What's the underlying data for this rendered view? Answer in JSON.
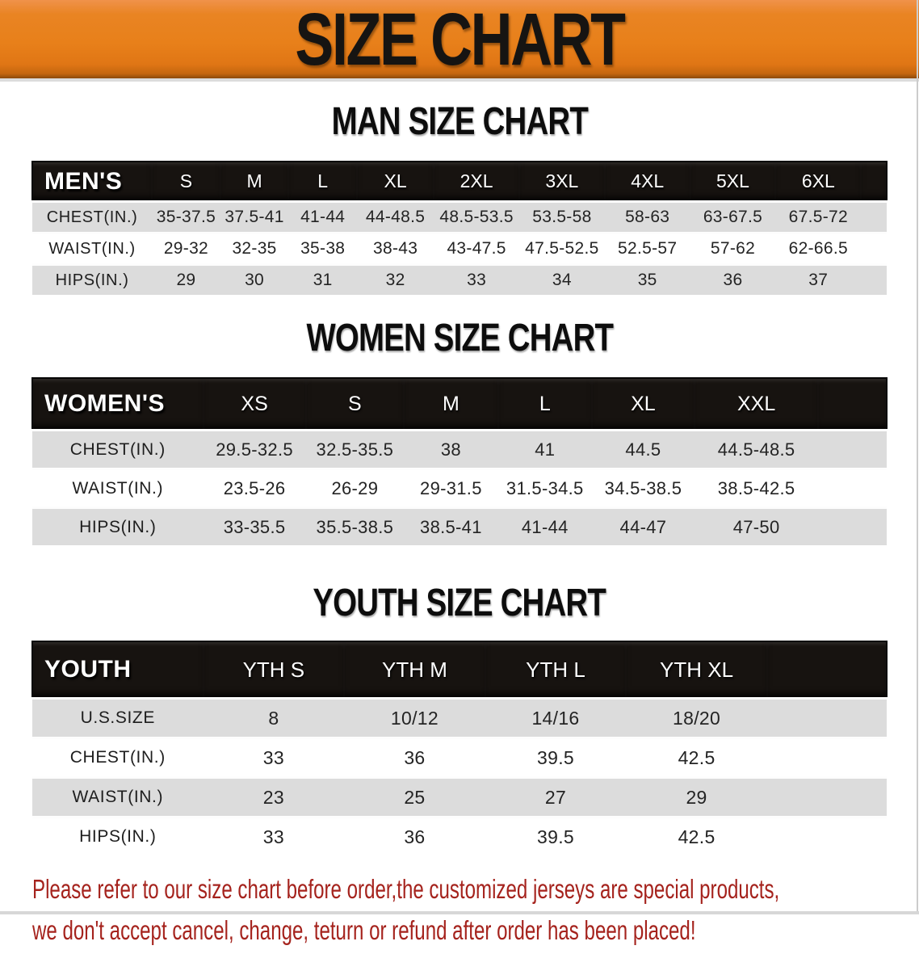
{
  "banner": {
    "title": "SIZE CHART",
    "bg_color": "#E8801A"
  },
  "sections": [
    {
      "title": "MAN SIZE CHART",
      "corner_label": "MEN'S",
      "sizes": [
        "S",
        "M",
        "L",
        "XL",
        "2XL",
        "3XL",
        "4XL",
        "5XL",
        "6XL"
      ],
      "rows": [
        {
          "label": "CHEST(IN.)",
          "values": [
            "35-37.5",
            "37.5-41",
            "41-44",
            "44-48.5",
            "48.5-53.5",
            "53.5-58",
            "58-63",
            "63-67.5",
            "67.5-72"
          ]
        },
        {
          "label": "WAIST(IN.)",
          "values": [
            "29-32",
            "32-35",
            "35-38",
            "38-43",
            "43-47.5",
            "47.5-52.5",
            "52.5-57",
            "57-62",
            "62-66.5"
          ]
        },
        {
          "label": "HIPS(IN.)",
          "values": [
            "29",
            "30",
            "31",
            "32",
            "33",
            "34",
            "35",
            "36",
            "37"
          ]
        }
      ]
    },
    {
      "title": "WOMEN SIZE CHART",
      "corner_label": "WOMEN'S",
      "sizes": [
        "XS",
        "S",
        "M",
        "L",
        "XL",
        "XXL"
      ],
      "rows": [
        {
          "label": "CHEST(IN.)",
          "values": [
            "29.5-32.5",
            "32.5-35.5",
            "38",
            "41",
            "44.5",
            "44.5-48.5"
          ]
        },
        {
          "label": "WAIST(IN.)",
          "values": [
            "23.5-26",
            "26-29",
            "29-31.5",
            "31.5-34.5",
            "34.5-38.5",
            "38.5-42.5"
          ]
        },
        {
          "label": "HIPS(IN.)",
          "values": [
            "33-35.5",
            "35.5-38.5",
            "38.5-41",
            "41-44",
            "44-47",
            "47-50"
          ]
        }
      ]
    },
    {
      "title": "YOUTH SIZE CHART",
      "corner_label": "YOUTH",
      "sizes": [
        "YTH S",
        "YTH M",
        "YTH L",
        "YTH XL"
      ],
      "rows": [
        {
          "label": "U.S.SIZE",
          "values": [
            "8",
            "10/12",
            "14/16",
            "18/20"
          ]
        },
        {
          "label": "CHEST(IN.)",
          "values": [
            "33",
            "36",
            "39.5",
            "42.5"
          ]
        },
        {
          "label": "WAIST(IN.)",
          "values": [
            "23",
            "25",
            "27",
            "29"
          ]
        },
        {
          "label": "HIPS(IN.)",
          "values": [
            "33",
            "36",
            "39.5",
            "42.5"
          ]
        }
      ]
    }
  ],
  "footer": {
    "lines": [
      "Please refer to our size chart before order,the customized jerseys are special products,",
      "we don't accept cancel, change, teturn or refund after order has been placed!"
    ],
    "text_color": "#A5231D"
  },
  "colors": {
    "banner_orange": "#E8801A",
    "header_bar_black": "#171310",
    "row_gray": "#DCDCDC",
    "row_white": "#FFFFFF",
    "notice_red": "#A5231D"
  }
}
